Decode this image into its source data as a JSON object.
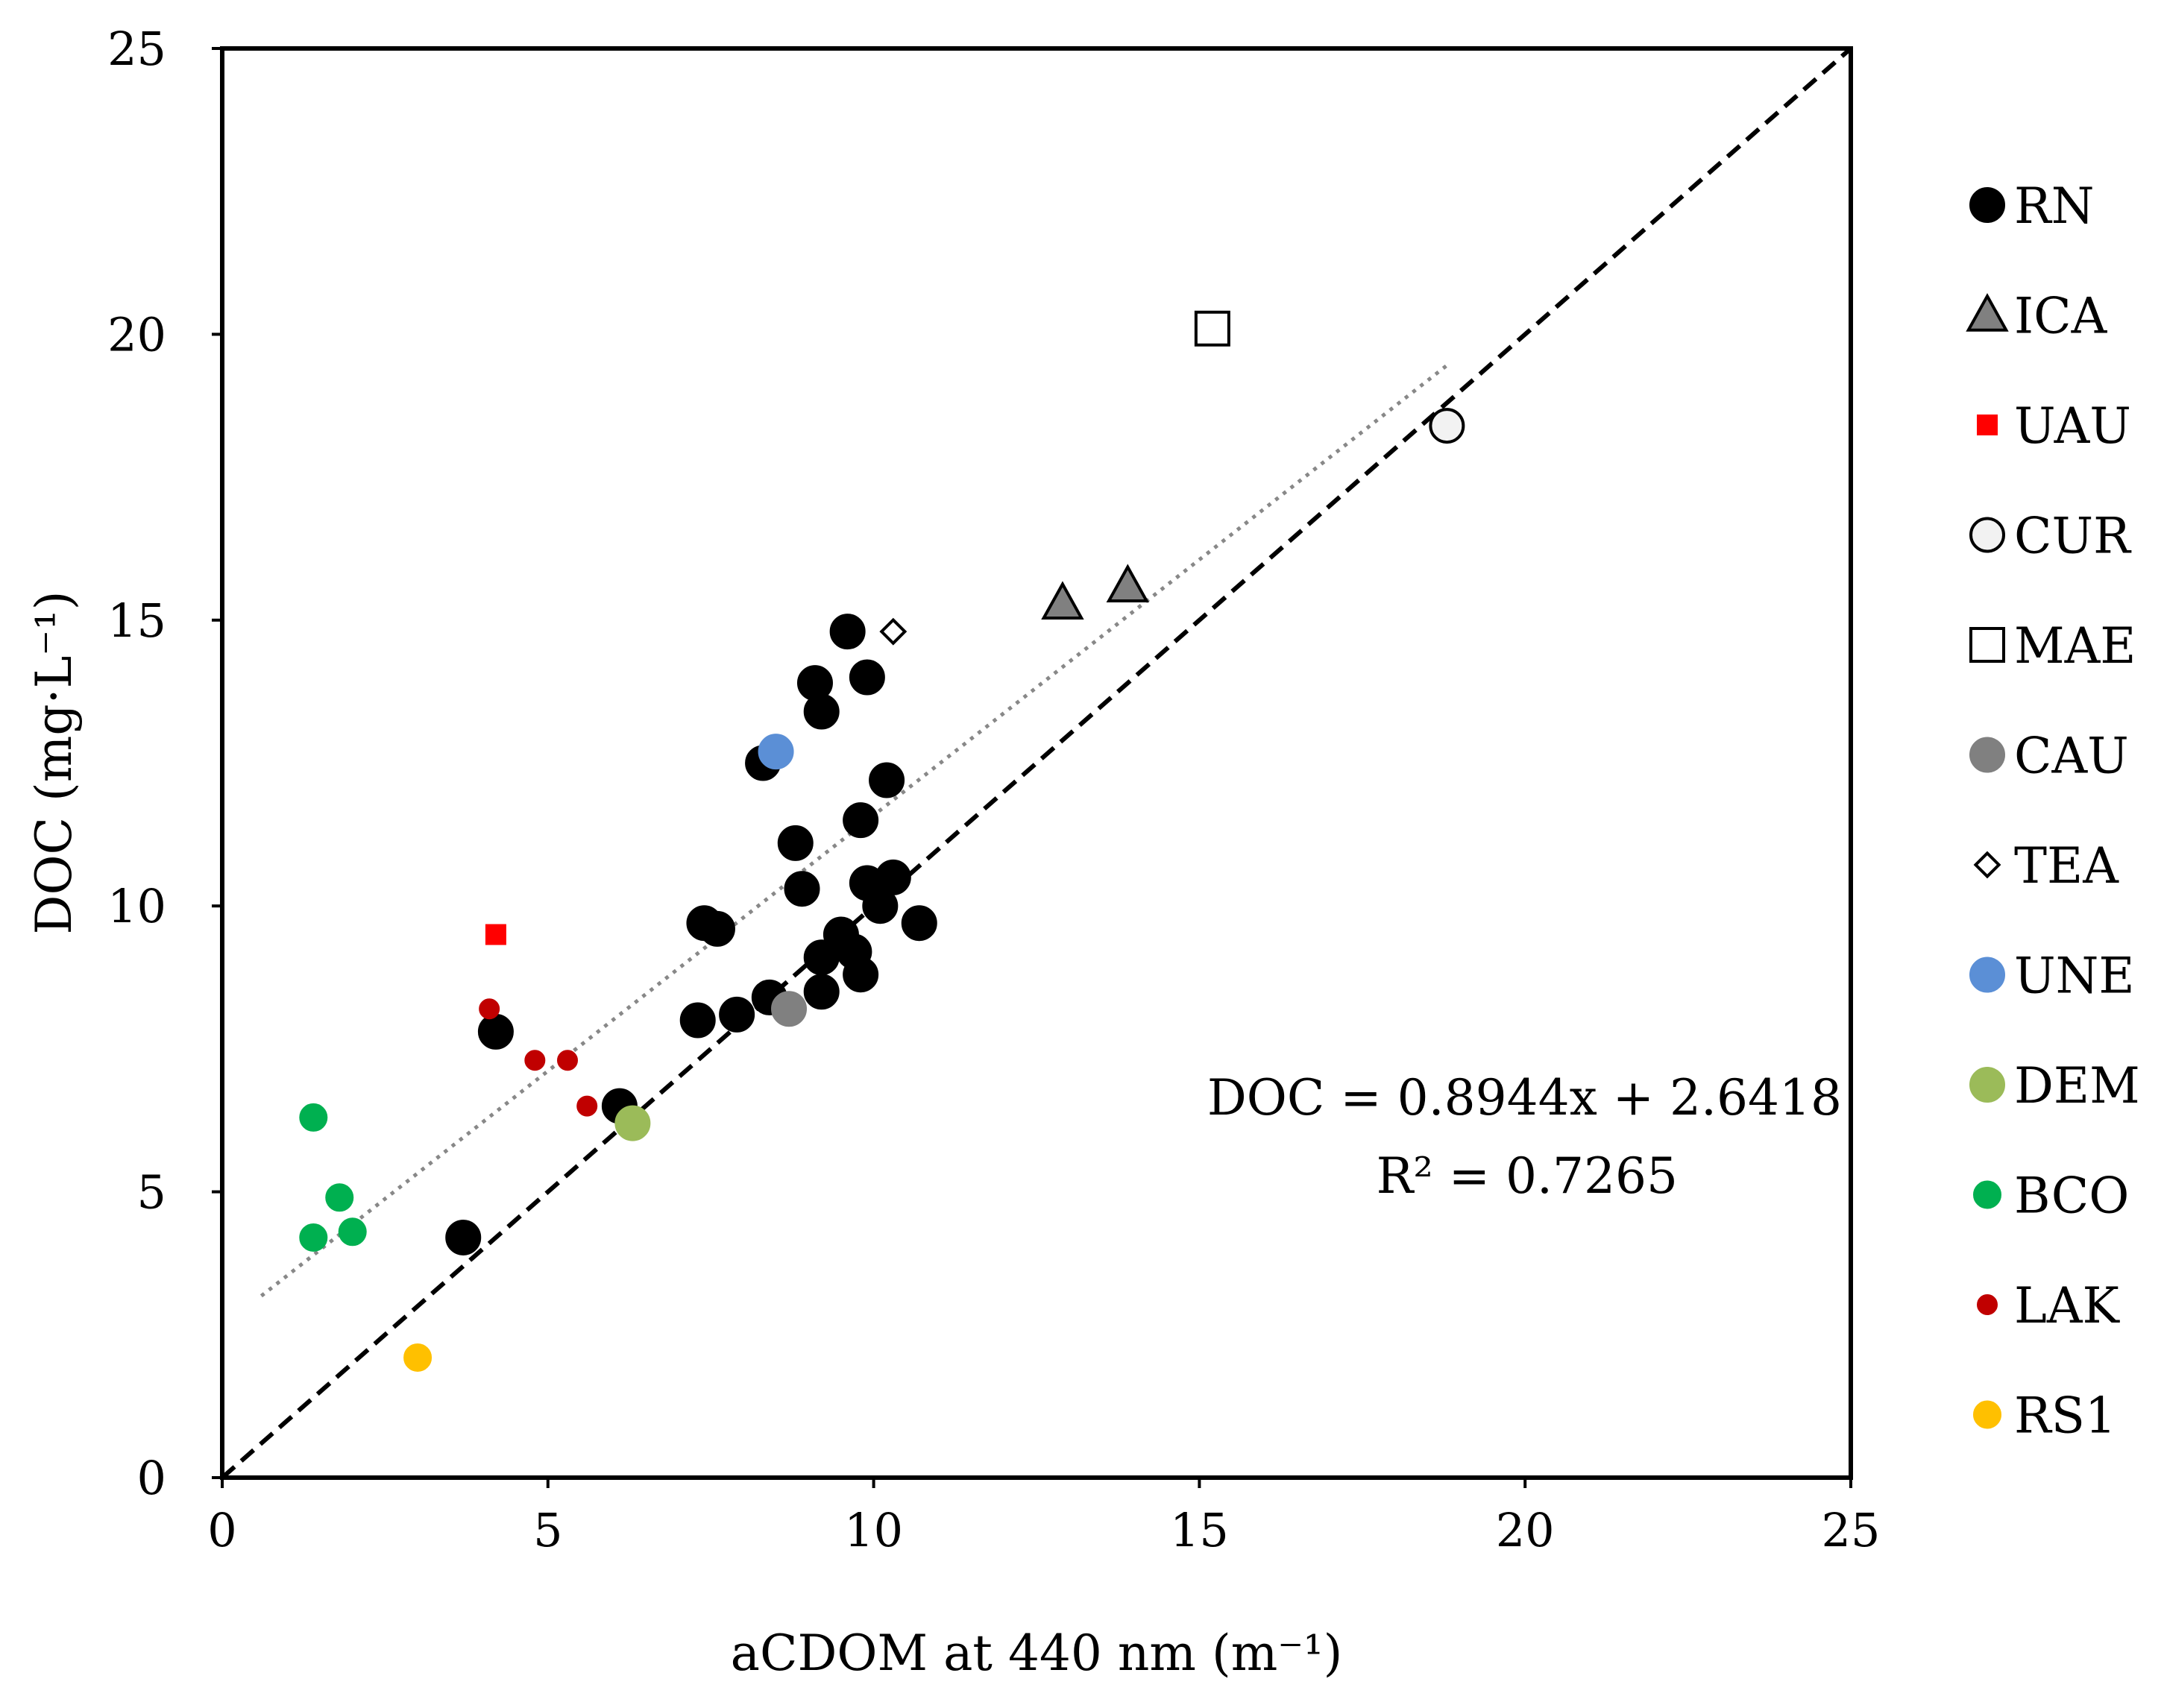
{
  "chart_data": {
    "type": "scatter",
    "xlabel": "aCDOM at 440  nm (m⁻¹)",
    "ylabel": "DOC (mg·L⁻¹)",
    "xlim": [
      0,
      25
    ],
    "ylim": [
      0,
      25
    ],
    "x_ticks": [
      "0",
      "5",
      "10",
      "15",
      "20",
      "25"
    ],
    "y_ticks": [
      "0",
      "5",
      "10",
      "15",
      "20",
      "25"
    ],
    "grid": false,
    "legend_position": "right",
    "annotation": {
      "equation": "DOC = 0.8944x + 2.6418",
      "r2": "R² = 0.7265"
    },
    "fit_line": {
      "slope": 0.8944,
      "intercept": 2.6418,
      "x_range": [
        0.6,
        18.8
      ],
      "style": "dotted",
      "color": "#888888"
    },
    "identity_line": {
      "slope": 1,
      "intercept": 0,
      "x_range": [
        0,
        25
      ],
      "style": "dashed",
      "color": "#000000"
    },
    "series": [
      {
        "name": "RN",
        "marker": "circle",
        "color": "#000000",
        "stroke": "#000000",
        "size": "large",
        "points": [
          [
            3.7,
            4.2
          ],
          [
            4.2,
            7.8
          ],
          [
            6.1,
            6.5
          ],
          [
            7.3,
            8.0
          ],
          [
            7.4,
            9.7
          ],
          [
            7.6,
            9.6
          ],
          [
            7.9,
            8.1
          ],
          [
            8.3,
            12.5
          ],
          [
            8.4,
            8.4
          ],
          [
            8.8,
            11.1
          ],
          [
            8.9,
            10.3
          ],
          [
            9.1,
            13.9
          ],
          [
            9.2,
            13.4
          ],
          [
            9.2,
            9.1
          ],
          [
            9.2,
            8.5
          ],
          [
            9.5,
            9.5
          ],
          [
            9.6,
            14.8
          ],
          [
            9.7,
            9.2
          ],
          [
            9.8,
            11.5
          ],
          [
            9.8,
            8.8
          ],
          [
            9.9,
            14.0
          ],
          [
            9.9,
            10.4
          ],
          [
            10.1,
            10.0
          ],
          [
            10.2,
            12.2
          ],
          [
            10.3,
            10.5
          ],
          [
            10.7,
            9.7
          ]
        ]
      },
      {
        "name": "ICA",
        "marker": "triangle",
        "color": "#808080",
        "stroke": "#000000",
        "size": "large",
        "points": [
          [
            12.9,
            15.3
          ],
          [
            13.9,
            15.6
          ]
        ]
      },
      {
        "name": "UAU",
        "marker": "square",
        "color": "#ff0000",
        "stroke": "#ff0000",
        "size": "small",
        "points": [
          [
            4.2,
            9.5
          ]
        ]
      },
      {
        "name": "CUR",
        "marker": "circle",
        "color": "#f2f2f2",
        "stroke": "#000000",
        "size": "large",
        "points": [
          [
            18.8,
            18.4
          ]
        ]
      },
      {
        "name": "MAE",
        "marker": "square",
        "color": "#ffffff",
        "stroke": "#000000",
        "size": "large",
        "points": [
          [
            15.2,
            20.1
          ]
        ]
      },
      {
        "name": "CAU",
        "marker": "circle",
        "color": "#808080",
        "stroke": "#808080",
        "size": "large",
        "points": [
          [
            8.7,
            8.2
          ]
        ]
      },
      {
        "name": "TEA",
        "marker": "diamond",
        "color": "#ffffff",
        "stroke": "#000000",
        "size": "small",
        "points": [
          [
            10.3,
            14.8
          ]
        ]
      },
      {
        "name": "UNE",
        "marker": "circle",
        "color": "#5b8fd6",
        "stroke": "#5b8fd6",
        "size": "large",
        "points": [
          [
            8.5,
            12.7
          ]
        ]
      },
      {
        "name": "DEM",
        "marker": "circle",
        "color": "#9bbb59",
        "stroke": "#9bbb59",
        "size": "large",
        "points": [
          [
            6.3,
            6.2
          ]
        ]
      },
      {
        "name": "BCO",
        "marker": "circle",
        "color": "#00b050",
        "stroke": "#00b050",
        "size": "medium",
        "points": [
          [
            1.4,
            6.3
          ],
          [
            1.4,
            4.2
          ],
          [
            1.8,
            4.9
          ],
          [
            2.0,
            4.3
          ]
        ]
      },
      {
        "name": "LAK",
        "marker": "circle",
        "color": "#c00000",
        "stroke": "#c00000",
        "size": "small",
        "points": [
          [
            4.1,
            8.2
          ],
          [
            4.8,
            7.3
          ],
          [
            5.3,
            7.3
          ],
          [
            5.6,
            6.5
          ]
        ]
      },
      {
        "name": "RS1",
        "marker": "circle",
        "color": "#ffc000",
        "stroke": "#ffc000",
        "size": "medium",
        "points": [
          [
            3.0,
            2.1
          ]
        ]
      }
    ]
  }
}
